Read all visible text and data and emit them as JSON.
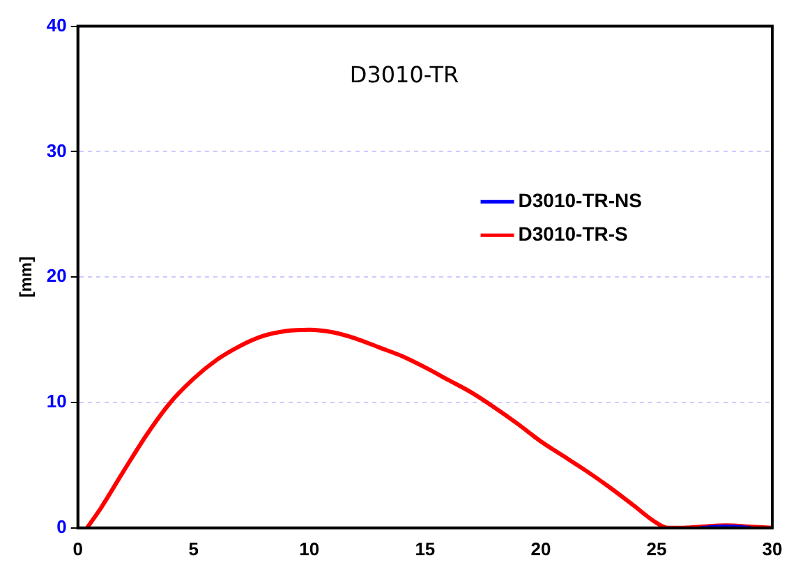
{
  "chart_data": {
    "type": "line",
    "title": "D3010-TR",
    "ylabel": "[mm]",
    "xlim": [
      0,
      30
    ],
    "xticks": [
      0,
      5,
      10,
      15,
      20,
      25,
      30
    ],
    "ylim": [
      0,
      40
    ],
    "yticks": [
      0,
      10,
      20,
      30,
      40
    ],
    "grid": "y",
    "legend": "right",
    "marker": "none",
    "line_style": "solid",
    "series": [
      {
        "name": "D3010-TR-NS",
        "color": "#0000ff",
        "x": [
          27,
          28,
          29
        ],
        "values": [
          0,
          0.1,
          0
        ]
      },
      {
        "name": "D3010-TR-S",
        "color": "#ff0000",
        "x": [
          0.4,
          1,
          2,
          3,
          4,
          5,
          6,
          7,
          8,
          9,
          10,
          11,
          12,
          13,
          14,
          15,
          16,
          17,
          18,
          19,
          20,
          21,
          22,
          23,
          24,
          25,
          25.5,
          26,
          27,
          28,
          29,
          30
        ],
        "values": [
          0,
          1.6,
          4.6,
          7.5,
          10,
          11.9,
          13.4,
          14.5,
          15.3,
          15.7,
          15.8,
          15.6,
          15.1,
          14.4,
          13.7,
          12.8,
          11.8,
          10.8,
          9.6,
          8.3,
          6.9,
          5.7,
          4.5,
          3.2,
          1.8,
          0.4,
          0,
          0,
          0.1,
          0.2,
          0.1,
          0
        ]
      }
    ]
  }
}
